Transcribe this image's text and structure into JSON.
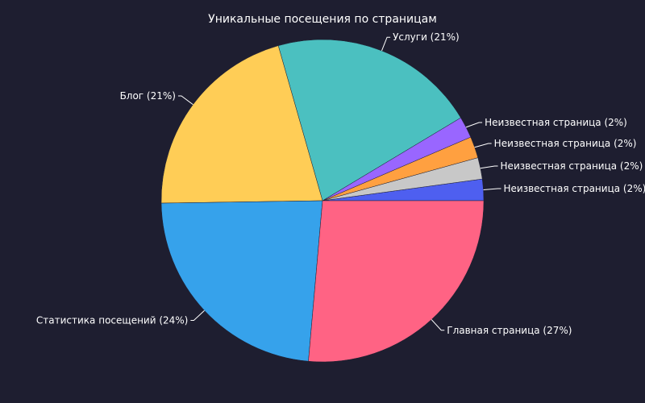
{
  "chart_data": {
    "type": "pie",
    "title": "Уникальные посещения по страницам",
    "slices": [
      {
        "label": "Неизвестная страница (2%)",
        "value": 2.2,
        "color": "#4e5ff0"
      },
      {
        "label": "Неизвестная страница (2%)",
        "value": 2.2,
        "color": "#c8c8c8"
      },
      {
        "label": "Неизвестная страница (2%)",
        "value": 2.2,
        "color": "#ffa040"
      },
      {
        "label": "Неизвестная страница (2%)",
        "value": 2.2,
        "color": "#9966ff"
      },
      {
        "label": "Услуги (21%)",
        "value": 21.3,
        "color": "#4bc0c0"
      },
      {
        "label": "Блог (21%)",
        "value": 21.3,
        "color": "#ffcd56"
      },
      {
        "label": "Статистика посещений (24%)",
        "value": 23.9,
        "color": "#36a2eb"
      },
      {
        "label": "Главная страница (27%)",
        "value": 27.0,
        "color": "#ff6384"
      }
    ],
    "direction": "counterclockwise",
    "start_angle_deg": 0,
    "legend": "none"
  }
}
